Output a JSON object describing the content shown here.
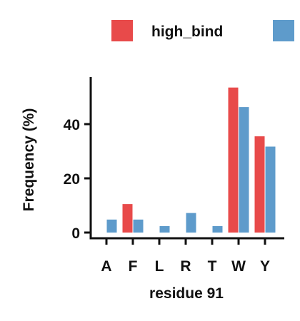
{
  "chart_data": {
    "type": "bar",
    "title": "",
    "xlabel": "residue 91",
    "ylabel": "Frequency (%)",
    "categories": [
      "A",
      "F",
      "L",
      "R",
      "T",
      "W",
      "Y"
    ],
    "ylim": [
      0,
      55
    ],
    "yticks": [
      0,
      20,
      40
    ],
    "grid": false,
    "legend_position": "top-right",
    "series": [
      {
        "name": "high_bind",
        "color": "#e84a4a",
        "values": [
          0,
          10.5,
          0,
          0,
          0,
          53.5,
          35.5
        ]
      },
      {
        "name": "",
        "color": "#5e9bcb",
        "values": [
          4.8,
          4.8,
          2.4,
          7.2,
          2.4,
          46.3,
          31.7
        ]
      }
    ]
  }
}
